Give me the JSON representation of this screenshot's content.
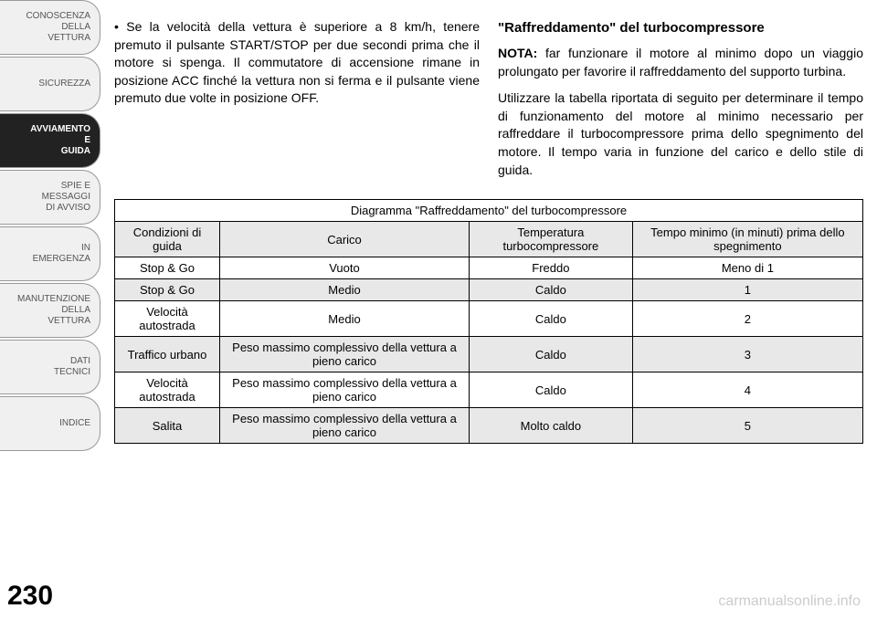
{
  "sidebar": {
    "items": [
      {
        "label": "CONOSCENZA\nDELLA\nVETTURA",
        "active": false
      },
      {
        "label": "SICUREZZA",
        "active": false
      },
      {
        "label": "AVVIAMENTO\nE\nGUIDA",
        "active": true
      },
      {
        "label": "SPIE E\nMESSAGGI\nDI AVVISO",
        "active": false
      },
      {
        "label": "IN\nEMERGENZA",
        "active": false
      },
      {
        "label": "MANUTENZIONE\nDELLA\nVETTURA",
        "active": false
      },
      {
        "label": "DATI\nTECNICI",
        "active": false
      },
      {
        "label": "INDICE",
        "active": false
      }
    ]
  },
  "page_number": "230",
  "left_col": {
    "bullet": "• Se la velocità della vettura è superiore a 8 km/h, tenere premuto il pulsante START/STOP per due secondi prima che il motore si spenga. Il commutatore di accensione rimane in posizione ACC finché la vettura non si ferma e il pulsante viene premuto due volte in posizione OFF."
  },
  "right_col": {
    "heading": "\"Raffreddamento\" del turbocompressore",
    "nota_label": "NOTA:",
    "nota_text": " far funzionare il motore al minimo dopo un viaggio prolungato per favorire il raffreddamento del supporto turbina.",
    "para2": "Utilizzare la tabella riportata di seguito per determinare il tempo di funzionamento del motore al minimo necessario per raffreddare il turbocompressore prima dello spegnimento del motore. Il tempo varia in funzione del carico e dello stile di guida."
  },
  "table": {
    "title": "Diagramma \"Raffreddamento\" del turbocompressore",
    "headers": [
      "Condizioni di guida",
      "Carico",
      "Temperatura turbocompressore",
      "Tempo minimo (in minuti) prima dello spegnimento"
    ],
    "rows": [
      {
        "cells": [
          "Stop & Go",
          "Vuoto",
          "Freddo",
          "Meno di 1"
        ],
        "shaded": false
      },
      {
        "cells": [
          "Stop & Go",
          "Medio",
          "Caldo",
          "1"
        ],
        "shaded": true
      },
      {
        "cells": [
          "Velocità autostrada",
          "Medio",
          "Caldo",
          "2"
        ],
        "shaded": false
      },
      {
        "cells": [
          "Traffico urbano",
          "Peso massimo complessivo della vettura a pieno carico",
          "Caldo",
          "3"
        ],
        "shaded": true
      },
      {
        "cells": [
          "Velocità autostrada",
          "Peso massimo complessivo della vettura a pieno carico",
          "Caldo",
          "4"
        ],
        "shaded": false
      },
      {
        "cells": [
          "Salita",
          "Peso massimo complessivo della vettura a pieno carico",
          "Molto caldo",
          "5"
        ],
        "shaded": true
      }
    ]
  },
  "watermark": "carmanualsonline.info"
}
